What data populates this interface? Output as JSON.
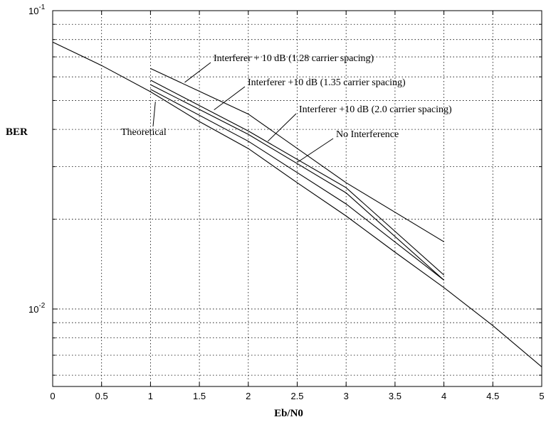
{
  "chart_data": {
    "type": "line",
    "title": "",
    "xlabel": "Eb/N0",
    "ylabel": "BER",
    "xlim": [
      0,
      5
    ],
    "ylim": [
      0.0055,
      0.1
    ],
    "yscale": "log",
    "grid": true,
    "x_ticks": [
      "0",
      "0.5",
      "1",
      "1.5",
      "2",
      "2.5",
      "3",
      "3.5",
      "4",
      "4.5",
      "5"
    ],
    "y_ticks": [
      {
        "value": 0.1,
        "base": "10",
        "exp": "-1"
      },
      {
        "value": 0.01,
        "base": "10",
        "exp": "-2"
      }
    ],
    "series": [
      {
        "x": [
          0,
          0.5,
          1,
          1.5,
          2,
          2.5,
          3,
          3.5,
          4,
          4.5,
          5
        ],
        "y": [
          0.0785,
          0.0655,
          0.0535,
          0.0425,
          0.0345,
          0.0265,
          0.0205,
          0.0155,
          0.0118,
          0.0088,
          0.0064
        ]
      },
      {
        "x": [
          1,
          2,
          3,
          4
        ],
        "y": [
          0.0545,
          0.0365,
          0.0225,
          0.0125
        ]
      },
      {
        "x": [
          1,
          2,
          3,
          4
        ],
        "y": [
          0.0565,
          0.0385,
          0.0245,
          0.0125
        ]
      },
      {
        "x": [
          1,
          2,
          3,
          4
        ],
        "y": [
          0.0585,
          0.0395,
          0.0255,
          0.013
        ]
      },
      {
        "x": [
          1,
          2,
          3,
          4
        ],
        "y": [
          0.064,
          0.045,
          0.0265,
          0.0168
        ]
      }
    ],
    "annotations": [
      {
        "text": "Interferer + 10 dB (1.28 carrier spacing)",
        "series": 4,
        "at": [
          1.35,
          0.0575
        ]
      },
      {
        "text": "Interferer +10 dB  (1.35 carrier spacing)",
        "series": 3,
        "at": [
          1.65,
          0.0465
        ]
      },
      {
        "text": "Interferer +10 dB  (2.0 carrier spacing)",
        "series": 2,
        "at": [
          2.2,
          0.0365
        ]
      },
      {
        "text": "No Interference",
        "series": 1,
        "at": [
          2.5,
          0.031
        ]
      },
      {
        "text": "Theoretical",
        "series": 0,
        "at": [
          1.05,
          0.0495
        ]
      }
    ]
  }
}
